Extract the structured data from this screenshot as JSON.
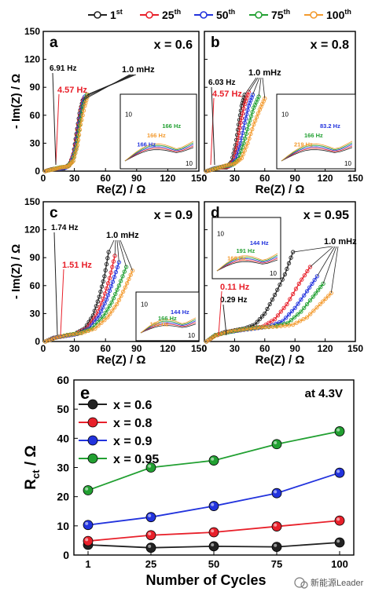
{
  "legend": {
    "entries": [
      {
        "label": "1",
        "sup": "st",
        "color": "#222222"
      },
      {
        "label": "25",
        "sup": "th",
        "color": "#e8202a"
      },
      {
        "label": "50",
        "sup": "th",
        "color": "#2233dd"
      },
      {
        "label": "75",
        "sup": "th",
        "color": "#22a032"
      },
      {
        "label": "100",
        "sup": "th",
        "color": "#f39a2e"
      }
    ]
  },
  "axes": {
    "ylabel": "- Im(Z) / Ω",
    "xlabel": "Re(Z) / Ω",
    "rct_ylabel_main": "R",
    "rct_ylabel_sub": "ct",
    "rct_ylabel_unit": " / Ω",
    "cycles_xlabel": "Number of Cycles"
  },
  "watermark": "新能源Leader",
  "chart_data": [
    {
      "type": "line",
      "panel": "a",
      "annotation": "x = 0.6",
      "xlim": [
        0,
        150
      ],
      "ylim": [
        0,
        150
      ],
      "xticks": [
        "0",
        "30",
        "60",
        "90",
        "120",
        "150"
      ],
      "yticks": [
        "0",
        "30",
        "60",
        "90",
        "120",
        "150"
      ],
      "freq_labels": [
        "6.91 Hz",
        "1.0 mHz"
      ],
      "freq_label_red": "4.57 Hz",
      "inset": {
        "ytick": "10",
        "xtick": "10",
        "labels": [
          {
            "text": "166 Hz",
            "color": "#22a032"
          },
          {
            "text": "166 Hz",
            "color": "#f39a2e"
          },
          {
            "text": "166 Hz",
            "color": "#2233dd"
          }
        ]
      },
      "series": [
        {
          "name": "1st",
          "color": "#222222",
          "points": [
            [
              2,
              0
            ],
            [
              8,
              2
            ],
            [
              14,
              3
            ],
            [
              20,
              3
            ],
            [
              25,
              6
            ],
            [
              29,
              18
            ],
            [
              32,
              40
            ],
            [
              35,
              62
            ],
            [
              38,
              76
            ]
          ]
        },
        {
          "name": "25th",
          "color": "#e8202a",
          "points": [
            [
              2,
              0
            ],
            [
              8,
              2
            ],
            [
              15,
              3
            ],
            [
              21,
              4
            ],
            [
              26,
              8
            ],
            [
              30,
              22
            ],
            [
              33,
              44
            ],
            [
              36,
              65
            ],
            [
              39,
              78
            ]
          ]
        },
        {
          "name": "50th",
          "color": "#2233dd",
          "points": [
            [
              2,
              0
            ],
            [
              9,
              2
            ],
            [
              16,
              3
            ],
            [
              22,
              4
            ],
            [
              27,
              9
            ],
            [
              31,
              24
            ],
            [
              34,
              47
            ],
            [
              37,
              67
            ],
            [
              40,
              80
            ]
          ]
        },
        {
          "name": "75th",
          "color": "#22a032",
          "points": [
            [
              2,
              0
            ],
            [
              9,
              2
            ],
            [
              16,
              4
            ],
            [
              23,
              5
            ],
            [
              28,
              10
            ],
            [
              32,
              26
            ],
            [
              35,
              49
            ],
            [
              38,
              69
            ],
            [
              42,
              82
            ]
          ]
        },
        {
          "name": "100th",
          "color": "#f39a2e",
          "points": [
            [
              2,
              0
            ],
            [
              10,
              2
            ],
            [
              17,
              4
            ],
            [
              24,
              5
            ],
            [
              29,
              11
            ],
            [
              33,
              28
            ],
            [
              36,
              50
            ],
            [
              40,
              70
            ],
            [
              43,
              82
            ]
          ]
        }
      ]
    },
    {
      "type": "line",
      "panel": "b",
      "annotation": "x = 0.8",
      "xlim": [
        0,
        150
      ],
      "ylim": [
        0,
        150
      ],
      "xticks": [
        "0",
        "30",
        "60",
        "90",
        "120",
        "150"
      ],
      "yticks": [
        "0",
        "30",
        "60",
        "90",
        "120",
        "150"
      ],
      "freq_labels": [
        "6.03 Hz",
        "1.0 mHz"
      ],
      "freq_label_red": "4.57 Hz",
      "inset": {
        "ytick": "10",
        "xtick": "10",
        "labels": [
          {
            "text": "83.2 Hz",
            "color": "#2233dd"
          },
          {
            "text": "166 Hz",
            "color": "#22a032"
          },
          {
            "text": "219 Hz",
            "color": "#f39a2e"
          }
        ]
      },
      "series": [
        {
          "name": "1st",
          "color": "#222222",
          "points": [
            [
              2,
              0
            ],
            [
              9,
              2
            ],
            [
              16,
              4
            ],
            [
              22,
              4
            ],
            [
              27,
              10
            ],
            [
              31,
              28
            ],
            [
              34,
              50
            ],
            [
              37,
              70
            ],
            [
              40,
              82
            ]
          ]
        },
        {
          "name": "25th",
          "color": "#e8202a",
          "points": [
            [
              2,
              0
            ],
            [
              10,
              3
            ],
            [
              17,
              4
            ],
            [
              24,
              5
            ],
            [
              29,
              11
            ],
            [
              33,
              30
            ],
            [
              36,
              52
            ],
            [
              40,
              72
            ],
            [
              44,
              85
            ]
          ]
        },
        {
          "name": "50th",
          "color": "#2233dd",
          "points": [
            [
              2,
              0
            ],
            [
              10,
              3
            ],
            [
              18,
              5
            ],
            [
              26,
              6
            ],
            [
              31,
              12
            ],
            [
              36,
              30
            ],
            [
              40,
              52
            ],
            [
              44,
              70
            ],
            [
              48,
              82
            ]
          ]
        },
        {
          "name": "75th",
          "color": "#22a032",
          "points": [
            [
              2,
              0
            ],
            [
              11,
              3
            ],
            [
              19,
              5
            ],
            [
              28,
              7
            ],
            [
              34,
              13
            ],
            [
              39,
              30
            ],
            [
              44,
              50
            ],
            [
              49,
              68
            ],
            [
              54,
              80
            ]
          ]
        },
        {
          "name": "100th",
          "color": "#f39a2e",
          "points": [
            [
              2,
              0
            ],
            [
              12,
              3
            ],
            [
              21,
              6
            ],
            [
              30,
              8
            ],
            [
              37,
              14
            ],
            [
              43,
              30
            ],
            [
              49,
              50
            ],
            [
              55,
              66
            ],
            [
              60,
              78
            ]
          ]
        }
      ]
    },
    {
      "type": "line",
      "panel": "c",
      "annotation": "x = 0.9",
      "xlim": [
        0,
        150
      ],
      "ylim": [
        0,
        150
      ],
      "xticks": [
        "0",
        "30",
        "60",
        "90",
        "120",
        "150"
      ],
      "yticks": [
        "0",
        "30",
        "60",
        "90",
        "120",
        "150"
      ],
      "freq_labels": [
        "1.74 Hz",
        "1.0 mHz"
      ],
      "freq_label_red": "1.51 Hz",
      "inset": {
        "ytick": "10",
        "xtick": "10",
        "labels": [
          {
            "text": "144 Hz",
            "color": "#2233dd"
          },
          {
            "text": "166 Hz",
            "color": "#22a032"
          },
          {
            "text": "190 Hz",
            "color": "#f39a2e"
          }
        ]
      },
      "series": [
        {
          "name": "1st",
          "color": "#222222",
          "points": [
            [
              2,
              0
            ],
            [
              10,
              4
            ],
            [
              20,
              6
            ],
            [
              30,
              8
            ],
            [
              40,
              14
            ],
            [
              48,
              28
            ],
            [
              54,
              48
            ],
            [
              59,
              70
            ],
            [
              63,
              96
            ]
          ]
        },
        {
          "name": "25th",
          "color": "#e8202a",
          "points": [
            [
              2,
              0
            ],
            [
              11,
              4
            ],
            [
              21,
              6
            ],
            [
              31,
              8
            ],
            [
              42,
              14
            ],
            [
              51,
              28
            ],
            [
              58,
              46
            ],
            [
              64,
              68
            ],
            [
              69,
              92
            ]
          ]
        },
        {
          "name": "50th",
          "color": "#2233dd",
          "points": [
            [
              2,
              0
            ],
            [
              11,
              4
            ],
            [
              22,
              6
            ],
            [
              33,
              8
            ],
            [
              44,
              14
            ],
            [
              54,
              28
            ],
            [
              61,
              45
            ],
            [
              67,
              64
            ],
            [
              73,
              85
            ]
          ]
        },
        {
          "name": "75th",
          "color": "#22a032",
          "points": [
            [
              2,
              0
            ],
            [
              12,
              4
            ],
            [
              23,
              7
            ],
            [
              35,
              9
            ],
            [
              47,
              14
            ],
            [
              58,
              27
            ],
            [
              66,
              42
            ],
            [
              73,
              60
            ],
            [
              80,
              80
            ]
          ]
        },
        {
          "name": "100th",
          "color": "#f39a2e",
          "points": [
            [
              2,
              0
            ],
            [
              12,
              4
            ],
            [
              24,
              7
            ],
            [
              37,
              9
            ],
            [
              50,
              14
            ],
            [
              62,
              26
            ],
            [
              71,
              40
            ],
            [
              79,
              58
            ],
            [
              86,
              76
            ]
          ]
        }
      ]
    },
    {
      "type": "line",
      "panel": "d",
      "annotation": "x = 0.95",
      "xlim": [
        0,
        150
      ],
      "ylim": [
        0,
        150
      ],
      "xticks": [
        "0",
        "30",
        "60",
        "90",
        "120",
        "150"
      ],
      "yticks": [
        "0",
        "30",
        "60",
        "90",
        "120",
        "150"
      ],
      "freq_labels": [
        "0.29 Hz",
        "1.0 mHz"
      ],
      "freq_label_red": "0.11 Hz",
      "inset": {
        "ytick": "10",
        "xtick": "10",
        "labels": [
          {
            "text": "144 Hz",
            "color": "#2233dd"
          },
          {
            "text": "191 Hz",
            "color": "#22a032"
          },
          {
            "text": "166 Hz",
            "color": "#f39a2e"
          }
        ]
      },
      "series": [
        {
          "name": "1st",
          "color": "#222222",
          "points": [
            [
              2,
              0
            ],
            [
              10,
              6
            ],
            [
              20,
              10
            ],
            [
              30,
              12
            ],
            [
              40,
              14
            ],
            [
              50,
              18
            ],
            [
              60,
              30
            ],
            [
              70,
              50
            ],
            [
              80,
              72
            ],
            [
              88,
              96
            ]
          ]
        },
        {
          "name": "25th",
          "color": "#e8202a",
          "points": [
            [
              2,
              0
            ],
            [
              10,
              6
            ],
            [
              22,
              10
            ],
            [
              34,
              12
            ],
            [
              46,
              14
            ],
            [
              58,
              16
            ],
            [
              70,
              24
            ],
            [
              82,
              40
            ],
            [
              94,
              62
            ],
            [
              105,
              80
            ]
          ]
        },
        {
          "name": "50th",
          "color": "#2233dd",
          "points": [
            [
              2,
              0
            ],
            [
              11,
              7
            ],
            [
              23,
              10
            ],
            [
              36,
              12
            ],
            [
              50,
              14
            ],
            [
              64,
              16
            ],
            [
              78,
              22
            ],
            [
              90,
              36
            ],
            [
              102,
              54
            ],
            [
              112,
              70
            ]
          ]
        },
        {
          "name": "75th",
          "color": "#22a032",
          "points": [
            [
              2,
              0
            ],
            [
              11,
              7
            ],
            [
              24,
              10
            ],
            [
              38,
              13
            ],
            [
              53,
              15
            ],
            [
              68,
              16
            ],
            [
              83,
              20
            ],
            [
              96,
              32
            ],
            [
              108,
              48
            ],
            [
              118,
              62
            ]
          ]
        },
        {
          "name": "100th",
          "color": "#f39a2e",
          "points": [
            [
              2,
              0
            ],
            [
              12,
              7
            ],
            [
              25,
              11
            ],
            [
              40,
              13
            ],
            [
              56,
              15
            ],
            [
              72,
              16
            ],
            [
              88,
              18
            ],
            [
              102,
              26
            ],
            [
              115,
              40
            ],
            [
              126,
              52
            ]
          ]
        }
      ]
    },
    {
      "type": "line",
      "panel": "e",
      "annotation": "at 4.3V",
      "ylabel": "Rct / Ω",
      "xlabel": "Number of Cycles",
      "categories": [
        "1",
        "25",
        "50",
        "75",
        "100"
      ],
      "ylim": [
        0,
        60
      ],
      "yticks": [
        "0",
        "10",
        "20",
        "30",
        "40",
        "50",
        "60"
      ],
      "legend_placement": "top-left",
      "series": [
        {
          "name": "x = 0.6",
          "color": "#222222",
          "values": [
            3.5,
            2.5,
            3.0,
            2.8,
            4.3
          ]
        },
        {
          "name": "x = 0.8",
          "color": "#e8202a",
          "values": [
            4.8,
            6.8,
            7.8,
            9.8,
            11.8
          ]
        },
        {
          "name": "x = 0.9",
          "color": "#2233dd",
          "values": [
            10.3,
            13.0,
            16.8,
            21.2,
            28.2
          ]
        },
        {
          "name": "x = 0.95",
          "color": "#22a032",
          "values": [
            22.2,
            30.0,
            32.4,
            38.0,
            42.4
          ]
        }
      ]
    }
  ]
}
